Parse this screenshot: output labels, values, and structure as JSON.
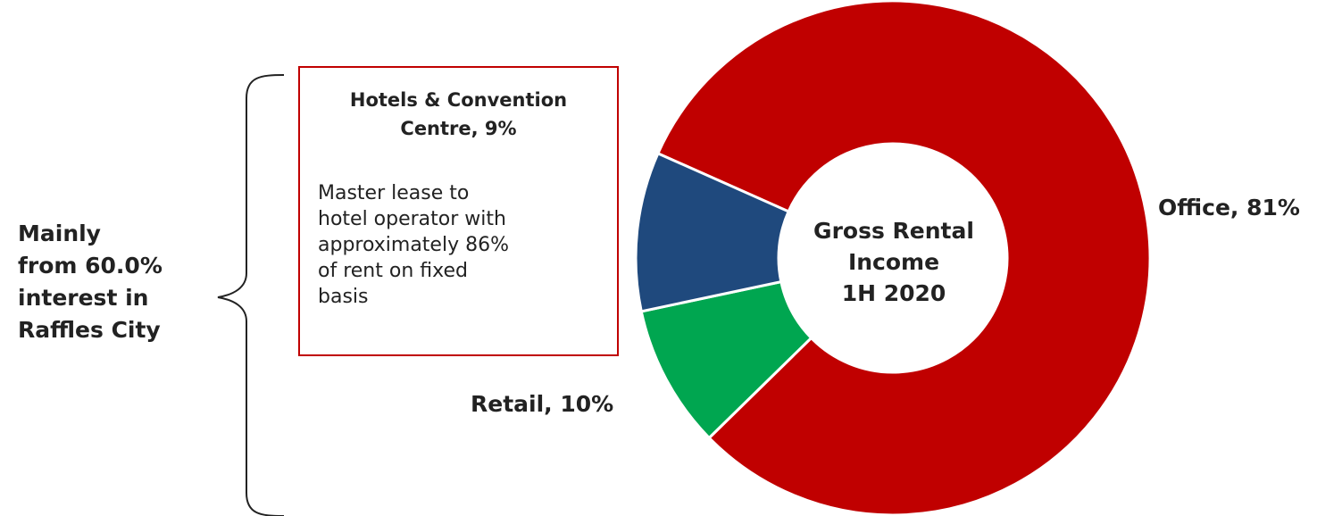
{
  "chart_data": {
    "type": "pie",
    "style": "donut",
    "title": "",
    "center_label": [
      "Gross Rental",
      "Income",
      "1H 2020"
    ],
    "slices": [
      {
        "label": "Office, 81%",
        "value": 81,
        "color": "#c00000"
      },
      {
        "label": "Hotels & Convention Centre, 9%",
        "value": 9,
        "color": "#00a650"
      },
      {
        "label": "Retail, 10%",
        "value": 10,
        "color": "#1f497d"
      }
    ],
    "annotations": {
      "side_note": [
        "Mainly",
        "from 60.0%",
        "interest in",
        "Raffles City"
      ],
      "box_title": [
        "Hotels & Convention",
        "Centre, 9%"
      ],
      "box_body": [
        "Master lease to",
        "hotel operator with",
        "approximately 86%",
        "of rent on fixed",
        "basis"
      ],
      "box_border_color": "#c00000"
    }
  }
}
